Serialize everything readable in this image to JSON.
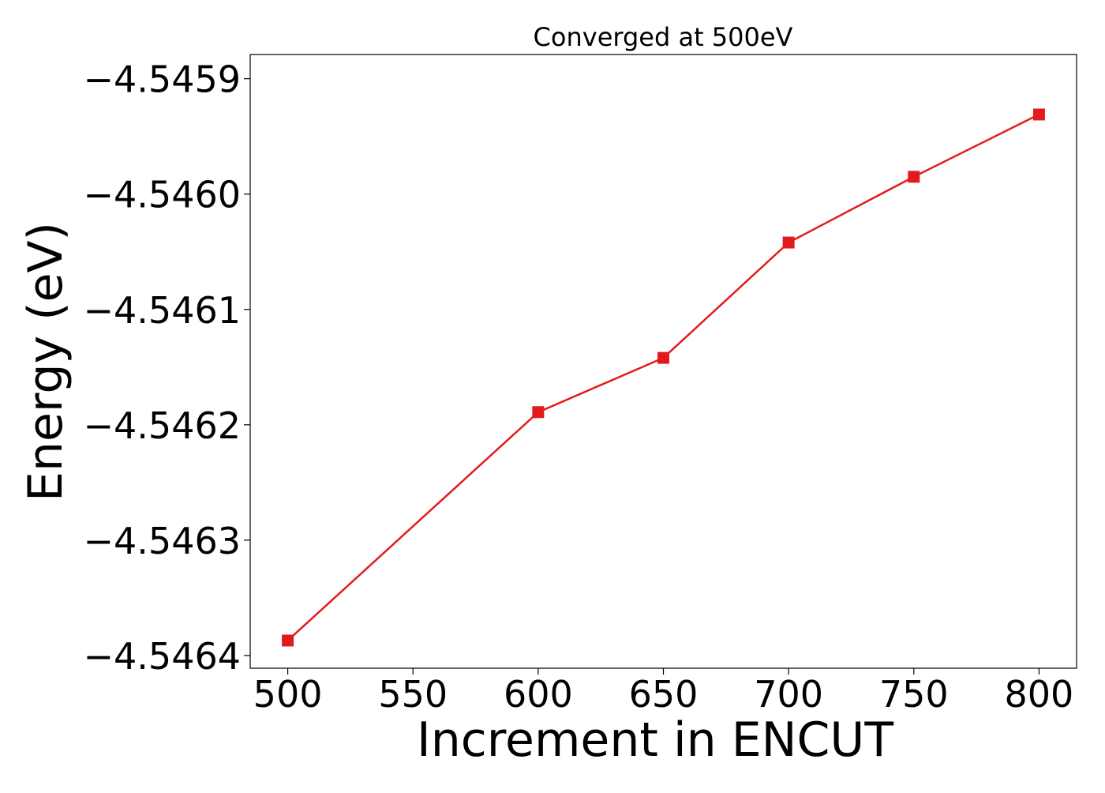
{
  "chart_data": {
    "type": "line",
    "title": "Converged at 500eV",
    "xlabel": "Increment in ENCUT",
    "ylabel": "Energy (eV)",
    "x": [
      500,
      600,
      650,
      700,
      750,
      800
    ],
    "series": [
      {
        "values": [
          -4.546387,
          -4.546189,
          -4.546142,
          -4.546042,
          -4.545985,
          -4.545931
        ],
        "color": "#e31a1c",
        "marker": "square"
      }
    ],
    "xticks": [
      500,
      550,
      600,
      650,
      700,
      750,
      800
    ],
    "xtick_labels": [
      "500",
      "550",
      "600",
      "650",
      "700",
      "750",
      "800"
    ],
    "yticks": [
      -4.5464,
      -4.5463,
      -4.5462,
      -4.5461,
      -4.546,
      -4.5459
    ],
    "ytick_labels": [
      "−4.5464",
      "−4.5463",
      "−4.5462",
      "−4.5461",
      "−4.5460",
      "−4.5459"
    ],
    "xlim": [
      485,
      815
    ],
    "ylim": [
      -4.546411,
      -4.545879
    ],
    "grid": false,
    "legend": "none"
  }
}
